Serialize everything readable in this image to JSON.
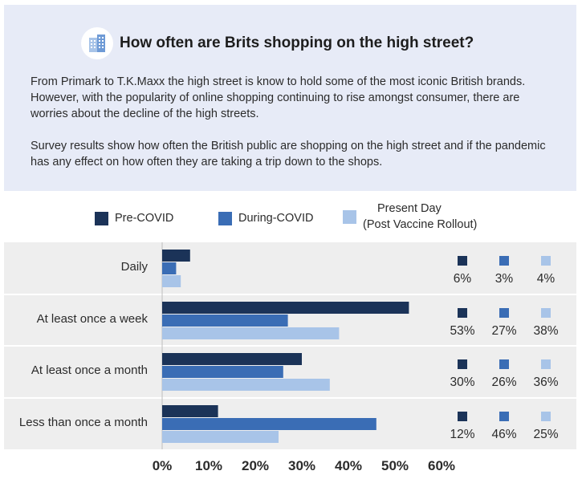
{
  "title": "How often are Brits shopping on the high street?",
  "paragraph1": "From Primark to T.K.Maxx the high street is know to hold some of the most iconic British brands. However, with the popularity of online shopping continuing to rise amongst consumer, there are worries about the decline of the high streets.",
  "paragraph2": "Survey results show how often the British public are shopping on the high street and if the pandemic has any effect on how often they are taking a trip down to the shops.",
  "icon": "building-icon",
  "legend": {
    "pre": "Pre-COVID",
    "during": "During-COVID",
    "present_line1": "Present Day",
    "present_line2": "(Post Vaccine Rollout)"
  },
  "colors": {
    "pre": "#1b3358",
    "during": "#3a6db5",
    "present": "#a8c4e8",
    "band": "#eeeeee",
    "header_bg": "#e7ebf7"
  },
  "chart_data": {
    "type": "bar",
    "orientation": "horizontal",
    "title": "How often are Brits shopping on the high street?",
    "categories": [
      "Daily",
      "At least once a week",
      "At least once a month",
      "Less than once a month"
    ],
    "series": [
      {
        "name": "Pre-COVID",
        "values": [
          6,
          53,
          30,
          12
        ]
      },
      {
        "name": "During-COVID",
        "values": [
          3,
          27,
          26,
          46
        ]
      },
      {
        "name": "Present Day (Post Vaccine Rollout)",
        "values": [
          4,
          38,
          36,
          25
        ]
      }
    ],
    "value_labels": [
      [
        "6%",
        "3%",
        "4%"
      ],
      [
        "53%",
        "27%",
        "38%"
      ],
      [
        "30%",
        "26%",
        "36%"
      ],
      [
        "12%",
        "46%",
        "25%"
      ]
    ],
    "xlim": [
      0,
      60
    ],
    "xticks": [
      "0%",
      "10%",
      "20%",
      "30%",
      "40%",
      "50%",
      "60%"
    ],
    "xlabel": "",
    "ylabel": "",
    "grid": false,
    "legend_position": "top"
  }
}
